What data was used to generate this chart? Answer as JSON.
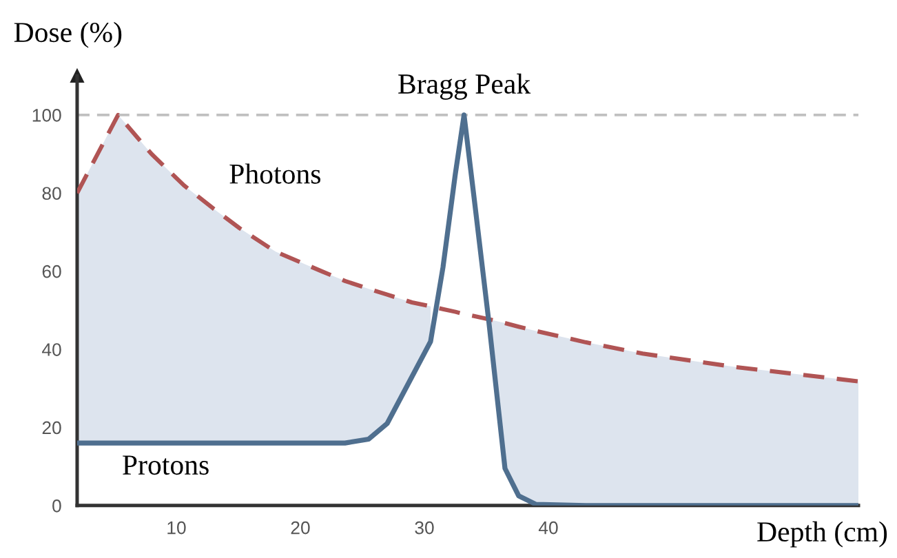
{
  "chart_data": {
    "type": "line",
    "xlabel": "Depth (cm)",
    "ylabel": "Dose (%)",
    "x": [
      2,
      5.3,
      8,
      10.6,
      13,
      15.1,
      18,
      21.7,
      23.6,
      25.5,
      27,
      29,
      30.5,
      31.5,
      32.5,
      33.2,
      34,
      35.2,
      36.5,
      37.6,
      39,
      43,
      47.6,
      55,
      65
    ],
    "series": [
      {
        "name": "Photons",
        "color": "#b05454",
        "line_style": "dashed",
        "values": [
          80,
          100,
          90,
          82,
          76,
          71,
          65,
          60,
          57.5,
          55.5,
          54,
          52,
          51,
          50.3,
          49.6,
          49,
          48.5,
          47.7,
          46.7,
          45.8,
          44.7,
          41.8,
          38.9,
          35.5,
          31.8
        ],
        "upper": [
          80,
          100,
          90,
          82,
          76,
          71,
          65,
          60,
          57.5,
          55.5,
          54,
          52,
          51,
          null,
          null,
          null,
          null,
          47.7,
          46.7,
          45.8,
          44.7,
          41.8,
          38.9,
          35.5,
          31.8
        ],
        "lower": [
          16,
          16,
          16,
          16,
          16,
          16,
          16,
          16,
          16,
          17,
          21,
          33,
          42,
          null,
          null,
          null,
          null,
          47,
          9.5,
          2.5,
          0.3,
          0,
          0,
          0,
          0
        ]
      },
      {
        "name": "Protons",
        "color": "#4f6f8f",
        "line_style": "solid",
        "values": [
          16,
          16,
          16,
          16,
          16,
          16,
          16,
          16,
          16,
          17,
          21,
          33,
          42,
          61,
          85,
          100,
          79,
          47,
          9.5,
          2.5,
          0.3,
          0,
          0,
          0,
          0
        ]
      }
    ],
    "xlim": [
      2,
      65
    ],
    "ylim": [
      0,
      110
    ],
    "xticks": [
      10,
      20,
      30,
      40
    ],
    "yticks": [
      0,
      20,
      40,
      60,
      80,
      100
    ],
    "ref_lines": [
      {
        "axis": "y",
        "value": 100,
        "color": "#c0c0c0",
        "line_style": "dashed"
      }
    ],
    "annotations": [
      {
        "text": "Bragg Peak",
        "x": 33.2,
        "y": 100
      }
    ],
    "grid": false,
    "legend": false,
    "marker": "none"
  }
}
